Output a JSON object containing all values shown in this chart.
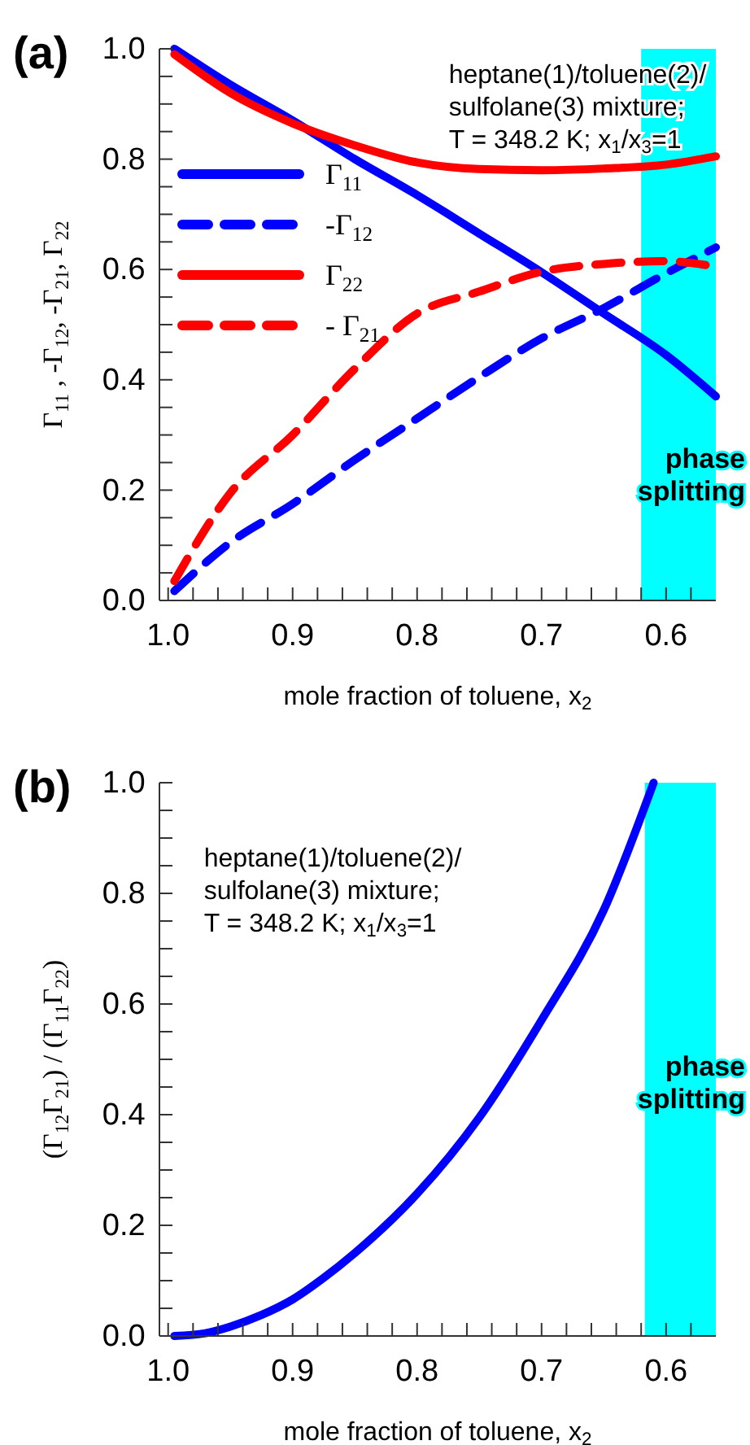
{
  "chart_data": [
    {
      "type": "line",
      "title": "(a)",
      "xlabel": "mole fraction of toluene, x$_{2}$",
      "ylabel": "Γ$_{11}$ , -Γ$_{12}$, -Γ$_{21}$, Γ$_{22}$",
      "xlim": [
        1.007,
        0.56
      ],
      "ylim": [
        0,
        1
      ],
      "xticks": [
        {
          "value": 1,
          "label": "1.0"
        },
        {
          "value": 0.98,
          "label": null
        },
        {
          "value": 0.96,
          "label": null
        },
        {
          "value": 0.94,
          "label": null
        },
        {
          "value": 0.92,
          "label": null
        },
        0.9,
        {
          "value": 0.88,
          "label": null
        },
        {
          "value": 0.86,
          "label": null
        },
        {
          "value": 0.84,
          "label": null
        },
        {
          "value": 0.82,
          "label": null
        },
        0.8,
        {
          "value": 0.78,
          "label": null
        },
        {
          "value": 0.76,
          "label": null
        },
        {
          "value": 0.74,
          "label": null
        },
        {
          "value": 0.72,
          "label": null
        },
        0.7,
        {
          "value": 0.68,
          "label": null
        },
        {
          "value": 0.66,
          "label": null
        },
        {
          "value": 0.64,
          "label": null
        },
        {
          "value": 0.62,
          "label": null
        },
        0.6,
        {
          "value": 0.58,
          "label": null
        }
      ],
      "yticks": [
        {
          "value": 0,
          "label": "0.0"
        },
        {
          "value": 0.05,
          "label": null
        },
        {
          "value": 0.1,
          "label": null
        },
        {
          "value": 0.15,
          "label": null
        },
        0.2,
        {
          "value": 0.25,
          "label": null
        },
        {
          "value": 0.3,
          "label": null
        },
        {
          "value": 0.35,
          "label": null
        },
        0.4,
        {
          "value": 0.45,
          "label": null
        },
        {
          "value": 0.5,
          "label": null
        },
        {
          "value": 0.55,
          "label": null
        },
        0.6,
        {
          "value": 0.65,
          "label": null
        },
        {
          "value": 0.7,
          "label": null
        },
        {
          "value": 0.75,
          "label": null
        },
        0.8,
        {
          "value": 0.85,
          "label": null
        },
        {
          "value": 0.9,
          "label": null
        },
        {
          "value": 0.95,
          "label": null
        },
        {
          "value": 1,
          "label": "1.0"
        }
      ],
      "x": [
        0.995,
        0.95,
        0.9,
        0.85,
        0.8,
        0.75,
        0.7,
        0.65,
        0.6,
        0.56
      ],
      "series": [
        {
          "name": "Γ$_{11}$",
          "color": "#0000ff",
          "line_style": "solid",
          "values": [
            1.0,
            0.935,
            0.87,
            0.8,
            0.735,
            0.665,
            0.595,
            0.52,
            0.445,
            0.37
          ]
        },
        {
          "name": "-Γ$_{12}$",
          "color": "#0000ff",
          "line_style": "dashed",
          "values": [
            0.017,
            0.105,
            0.175,
            0.255,
            0.33,
            0.405,
            0.475,
            0.53,
            0.593,
            0.64
          ]
        },
        {
          "name": "Γ$_{22}$",
          "color": "#ff0000",
          "line_style": "solid",
          "values": [
            0.99,
            0.92,
            0.865,
            0.825,
            0.794,
            0.782,
            0.78,
            0.783,
            0.79,
            0.805
          ]
        },
        {
          "name": "- Γ$_{21}$",
          "color": "#ff0000",
          "line_style": "dashed",
          "values": [
            0.035,
            0.195,
            0.3,
            0.42,
            0.52,
            0.56,
            0.596,
            0.61,
            0.615,
            0.605
          ]
        }
      ],
      "bands": [
        {
          "axis": "x",
          "from": 0.62,
          "to": 0.56,
          "label": "phase\nsplitting",
          "color": "#00ffff"
        }
      ],
      "annotations": [
        "heptane(1)/toluene(2)/\nsulfolane(3) mixture;\nT = 348.2 K; x$_{1}$/x$_{3}$=1"
      ],
      "legend": "left"
    },
    {
      "type": "line",
      "title": "(b)",
      "xlabel": "mole fraction of toluene, x$_{2}$",
      "ylabel": "(Γ$_{12}$Γ$_{21}$) / (Γ$_{11}$Γ$_{22}$)",
      "xlim": [
        1.007,
        0.56
      ],
      "ylim": [
        0,
        1
      ],
      "xticks": [
        {
          "value": 1,
          "label": "1.0"
        },
        {
          "value": 0.98,
          "label": null
        },
        {
          "value": 0.96,
          "label": null
        },
        {
          "value": 0.94,
          "label": null
        },
        {
          "value": 0.92,
          "label": null
        },
        0.9,
        {
          "value": 0.88,
          "label": null
        },
        {
          "value": 0.86,
          "label": null
        },
        {
          "value": 0.84,
          "label": null
        },
        {
          "value": 0.82,
          "label": null
        },
        0.8,
        {
          "value": 0.78,
          "label": null
        },
        {
          "value": 0.76,
          "label": null
        },
        {
          "value": 0.74,
          "label": null
        },
        {
          "value": 0.72,
          "label": null
        },
        0.7,
        {
          "value": 0.68,
          "label": null
        },
        {
          "value": 0.66,
          "label": null
        },
        {
          "value": 0.64,
          "label": null
        },
        {
          "value": 0.62,
          "label": null
        },
        0.6,
        {
          "value": 0.58,
          "label": null
        }
      ],
      "yticks": [
        {
          "value": 0,
          "label": "0.0"
        },
        {
          "value": 0.05,
          "label": null
        },
        {
          "value": 0.1,
          "label": null
        },
        {
          "value": 0.15,
          "label": null
        },
        0.2,
        {
          "value": 0.25,
          "label": null
        },
        {
          "value": 0.3,
          "label": null
        },
        {
          "value": 0.35,
          "label": null
        },
        0.4,
        {
          "value": 0.45,
          "label": null
        },
        {
          "value": 0.5,
          "label": null
        },
        {
          "value": 0.55,
          "label": null
        },
        0.6,
        {
          "value": 0.65,
          "label": null
        },
        {
          "value": 0.7,
          "label": null
        },
        {
          "value": 0.75,
          "label": null
        },
        0.8,
        {
          "value": 0.85,
          "label": null
        },
        {
          "value": 0.9,
          "label": null
        },
        {
          "value": 0.95,
          "label": null
        },
        {
          "value": 1,
          "label": "1.0"
        }
      ],
      "x": [
        0.995,
        0.97,
        0.95,
        0.925,
        0.9,
        0.875,
        0.85,
        0.8,
        0.75,
        0.7,
        0.65,
        0.61
      ],
      "series": [
        {
          "color": "#0000ff",
          "line_style": "solid",
          "values": [
            0,
            0.005,
            0.017,
            0.038,
            0.066,
            0.105,
            0.15,
            0.257,
            0.395,
            0.571,
            0.77,
            1.0
          ]
        }
      ],
      "bands": [
        {
          "axis": "x",
          "from": 0.617,
          "to": 0.56,
          "label": "phase\nsplitting",
          "color": "#00ffff"
        }
      ],
      "annotations": [
        "heptane(1)/toluene(2)/\nsulfolane(3) mixture;\nT = 348.2 K; x$_{1}$/x$_{3}$=1"
      ]
    }
  ]
}
